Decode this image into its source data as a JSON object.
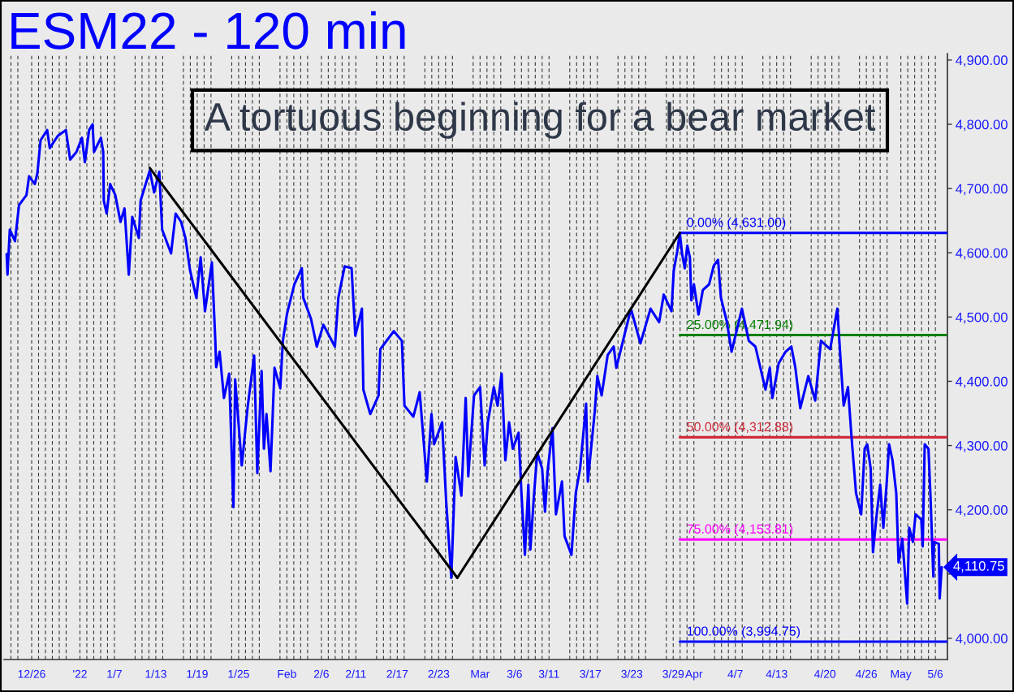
{
  "chart_data": {
    "type": "line",
    "title": "ESM22 - 120 min",
    "annotations": [
      "A tortuous beginning for a bear market",
      "4,110.75"
    ],
    "xlim": [
      "2021-12-22T00:00",
      "2022-05-07T18:00"
    ],
    "xticks": [
      {
        "value": "2021-12-23",
        "label": null
      },
      {
        "value": "2021-12-24",
        "label": null
      },
      {
        "value": "2021-12-26",
        "label": "12/26"
      },
      {
        "value": "2021-12-27",
        "label": null
      },
      {
        "value": "2021-12-28",
        "label": null
      },
      {
        "value": "2021-12-29",
        "label": null
      },
      {
        "value": "2021-12-30",
        "label": null
      },
      {
        "value": "2021-12-31",
        "label": null
      },
      {
        "value": "2022-01-02",
        "label": "'22"
      },
      {
        "value": "2022-01-03",
        "label": null
      },
      {
        "value": "2022-01-04",
        "label": null
      },
      {
        "value": "2022-01-05",
        "label": null
      },
      {
        "value": "2022-01-06",
        "label": null
      },
      {
        "value": "2022-01-07",
        "label": "1/7"
      },
      {
        "value": "2022-01-10",
        "label": null
      },
      {
        "value": "2022-01-11",
        "label": null
      },
      {
        "value": "2022-01-12",
        "label": null
      },
      {
        "value": "2022-01-13",
        "label": "1/13"
      },
      {
        "value": "2022-01-14",
        "label": null
      },
      {
        "value": "2022-01-17",
        "label": null
      },
      {
        "value": "2022-01-18",
        "label": null
      },
      {
        "value": "2022-01-19",
        "label": "1/19"
      },
      {
        "value": "2022-01-20",
        "label": null
      },
      {
        "value": "2022-01-21",
        "label": null
      },
      {
        "value": "2022-01-24",
        "label": null
      },
      {
        "value": "2022-01-25",
        "label": "1/25"
      },
      {
        "value": "2022-01-26",
        "label": null
      },
      {
        "value": "2022-01-27",
        "label": null
      },
      {
        "value": "2022-01-28",
        "label": null
      },
      {
        "value": "2022-01-31",
        "label": null
      },
      {
        "value": "2022-02-01",
        "label": "Feb"
      },
      {
        "value": "2022-02-02",
        "label": null
      },
      {
        "value": "2022-02-03",
        "label": null
      },
      {
        "value": "2022-02-04",
        "label": null
      },
      {
        "value": "2022-02-06",
        "label": "2/6"
      },
      {
        "value": "2022-02-07",
        "label": null
      },
      {
        "value": "2022-02-08",
        "label": null
      },
      {
        "value": "2022-02-09",
        "label": null
      },
      {
        "value": "2022-02-10",
        "label": null
      },
      {
        "value": "2022-02-11",
        "label": "2/11"
      },
      {
        "value": "2022-02-14",
        "label": null
      },
      {
        "value": "2022-02-15",
        "label": null
      },
      {
        "value": "2022-02-16",
        "label": null
      },
      {
        "value": "2022-02-17",
        "label": "2/17"
      },
      {
        "value": "2022-02-18",
        "label": null
      },
      {
        "value": "2022-02-21",
        "label": null
      },
      {
        "value": "2022-02-22",
        "label": null
      },
      {
        "value": "2022-02-23",
        "label": "2/23"
      },
      {
        "value": "2022-02-24",
        "label": null
      },
      {
        "value": "2022-02-25",
        "label": null
      },
      {
        "value": "2022-02-28",
        "label": null
      },
      {
        "value": "2022-03-01",
        "label": "Mar"
      },
      {
        "value": "2022-03-02",
        "label": null
      },
      {
        "value": "2022-03-03",
        "label": null
      },
      {
        "value": "2022-03-04",
        "label": null
      },
      {
        "value": "2022-03-06",
        "label": "3/6"
      },
      {
        "value": "2022-03-07",
        "label": null
      },
      {
        "value": "2022-03-08",
        "label": null
      },
      {
        "value": "2022-03-09",
        "label": null
      },
      {
        "value": "2022-03-10",
        "label": null
      },
      {
        "value": "2022-03-11",
        "label": "3/11"
      },
      {
        "value": "2022-03-14",
        "label": null
      },
      {
        "value": "2022-03-15",
        "label": null
      },
      {
        "value": "2022-03-16",
        "label": null
      },
      {
        "value": "2022-03-17",
        "label": "3/17"
      },
      {
        "value": "2022-03-18",
        "label": null
      },
      {
        "value": "2022-03-21",
        "label": null
      },
      {
        "value": "2022-03-22",
        "label": null
      },
      {
        "value": "2022-03-23",
        "label": "3/23"
      },
      {
        "value": "2022-03-24",
        "label": null
      },
      {
        "value": "2022-03-25",
        "label": null
      },
      {
        "value": "2022-03-28",
        "label": null
      },
      {
        "value": "2022-03-29",
        "label": "3/29"
      },
      {
        "value": "2022-03-30",
        "label": null
      },
      {
        "value": "2022-03-31",
        "label": null
      },
      {
        "value": "2022-04-01",
        "label": "Apr"
      },
      {
        "value": "2022-04-04",
        "label": null
      },
      {
        "value": "2022-04-05",
        "label": null
      },
      {
        "value": "2022-04-06",
        "label": null
      },
      {
        "value": "2022-04-07",
        "label": "4/7"
      },
      {
        "value": "2022-04-08",
        "label": null
      },
      {
        "value": "2022-04-11",
        "label": null
      },
      {
        "value": "2022-04-12",
        "label": null
      },
      {
        "value": "2022-04-13",
        "label": "4/13"
      },
      {
        "value": "2022-04-14",
        "label": null
      },
      {
        "value": "2022-04-15",
        "label": null
      },
      {
        "value": "2022-04-18",
        "label": null
      },
      {
        "value": "2022-04-19",
        "label": null
      },
      {
        "value": "2022-04-20",
        "label": "4/20"
      },
      {
        "value": "2022-04-21",
        "label": null
      },
      {
        "value": "2022-04-22",
        "label": null
      },
      {
        "value": "2022-04-25",
        "label": null
      },
      {
        "value": "2022-04-26",
        "label": "4/26"
      },
      {
        "value": "2022-04-27",
        "label": null
      },
      {
        "value": "2022-04-28",
        "label": null
      },
      {
        "value": "2022-04-29",
        "label": null
      },
      {
        "value": "2022-05-01",
        "label": "May"
      },
      {
        "value": "2022-05-02",
        "label": null
      },
      {
        "value": "2022-05-03",
        "label": null
      },
      {
        "value": "2022-05-04",
        "label": null
      },
      {
        "value": "2022-05-05",
        "label": null
      },
      {
        "value": "2022-05-06",
        "label": "5/6"
      }
    ],
    "ylim": [
      3967,
      4910
    ],
    "yticks": [
      {
        "value": 4000,
        "label": "4,000.00"
      },
      {
        "value": 4100,
        "label": null
      },
      {
        "value": 4200,
        "label": "4,200.00"
      },
      {
        "value": 4300,
        "label": "4,300.00"
      },
      {
        "value": 4400,
        "label": "4,400.00"
      },
      {
        "value": 4500,
        "label": "4,500.00"
      },
      {
        "value": 4600,
        "label": "4,600.00"
      },
      {
        "value": 4700,
        "label": "4,700.00"
      },
      {
        "value": 4800,
        "label": "4,800.00"
      },
      {
        "value": 4900,
        "label": "4,900.00"
      }
    ],
    "grid": "x",
    "series": [
      {
        "name": "0.00% (4,631.00)",
        "color": "#0000ff",
        "x": [
          "2022-03-29T23:00",
          "2022-05-07T18:00"
        ],
        "values": [
          4631.0,
          4631.0
        ]
      },
      {
        "name": "25.00% (4,471.94)",
        "color": "#008000",
        "x": [
          "2022-03-29T23:00",
          "2022-05-07T18:00"
        ],
        "values": [
          4471.94,
          4471.94
        ]
      },
      {
        "name": "50.00% (4,312.88)",
        "color": "#d02a3c",
        "x": [
          "2022-03-29T23:00",
          "2022-05-07T18:00"
        ],
        "values": [
          4312.88,
          4312.88
        ]
      },
      {
        "name": "75.00% (4,153.81)",
        "color": "#ff00ff",
        "x": [
          "2022-03-29T23:00",
          "2022-05-07T18:00"
        ],
        "values": [
          4153.81,
          4153.81
        ]
      },
      {
        "name": "100.00% (3,994.75)",
        "color": "#0000ff",
        "x": [
          "2022-03-29T23:00",
          "2022-05-07T18:00"
        ],
        "values": [
          3994.75,
          3994.75
        ]
      },
      {
        "color": "#0000ff",
        "x": [
          "2021-12-22T09:00",
          "2021-12-22T12:00",
          "2021-12-22T20:00",
          "2021-12-23T14:00",
          "2021-12-24T04:00",
          "2021-12-25T06:00",
          "2021-12-25T15:00",
          "2021-12-26T11:00",
          "2021-12-26T20:00",
          "2021-12-27T07:00",
          "2021-12-28T06:00",
          "2021-12-28T15:00",
          "2021-12-29T19:00",
          "2021-12-30T23:00",
          "2021-12-31T14:00",
          "2022-01-01T12:00",
          "2022-01-02T07:00",
          "2022-01-02T17:00",
          "2022-01-03T08:00",
          "2022-01-03T20:00",
          "2022-01-04T01:00",
          "2022-01-05T01:00",
          "2022-01-05T09:00",
          "2022-01-05T11:00",
          "2022-01-05T21:00",
          "2022-01-06T09:00",
          "2022-01-07T03:00",
          "2022-01-07T21:00",
          "2022-01-08T11:00",
          "2022-01-09T02:00",
          "2022-01-09T14:00",
          "2022-01-10T13:00",
          "2022-01-10T19:00",
          "2022-01-11T10:00",
          "2022-01-12T03:00",
          "2022-01-12T18:00",
          "2022-01-13T12:00",
          "2022-01-13T22:00",
          "2022-01-15T05:00",
          "2022-01-15T21:00",
          "2022-01-16T16:00",
          "2022-01-17T07:00",
          "2022-01-17T23:00",
          "2022-01-18T21:00",
          "2022-01-19T12:00",
          "2022-01-20T03:00",
          "2022-01-21T03:00",
          "2022-01-21T15:00",
          "2022-01-21T18:00",
          "2022-01-22T06:00",
          "2022-01-22T21:00",
          "2022-01-23T15:00",
          "2022-01-24T06:00",
          "2022-01-24T12:00",
          "2022-01-25T11:00",
          "2022-01-26T07:00",
          "2022-01-27T06:00",
          "2022-01-27T17:00",
          "2022-01-28T08:00",
          "2022-01-28T16:00",
          "2022-01-29T01:00",
          "2022-01-29T15:00",
          "2022-01-30T05:00",
          "2022-01-31T01:00",
          "2022-01-31T10:00",
          "2022-02-01T00:00",
          "2022-02-02T02:00",
          "2022-02-03T04:00",
          "2022-02-03T09:00",
          "2022-02-04T12:00",
          "2022-02-05T08:00",
          "2022-02-06T07:00",
          "2022-02-07T03:00",
          "2022-02-07T23:00",
          "2022-02-08T11:00",
          "2022-02-09T09:00",
          "2022-02-10T09:00",
          "2022-02-10T22:00",
          "2022-02-11T21:00",
          "2022-02-12T02:00",
          "2022-02-13T02:00",
          "2022-02-14T07:00",
          "2022-02-14T13:00",
          "2022-02-16T12:00",
          "2022-02-17T16:00",
          "2022-02-18T01:00",
          "2022-02-19T08:00",
          "2022-02-20T06:00",
          "2022-02-21T07:00",
          "2022-02-21T23:00",
          "2022-02-22T08:00",
          "2022-02-23T12:00",
          "2022-02-24T02:00",
          "2022-02-24T20:00",
          "2022-02-25T11:00",
          "2022-02-26T07:00",
          "2022-02-26T22:00",
          "2022-02-27T07:00",
          "2022-02-28T03:00",
          "2022-03-01T00:00",
          "2022-03-01T16:00",
          "2022-03-02T03:00",
          "2022-03-03T00:00",
          "2022-03-03T13:00",
          "2022-03-04T03:00",
          "2022-03-04T16:00",
          "2022-03-05T05:00",
          "2022-03-05T18:00",
          "2022-03-06T14:00",
          "2022-03-07T00:00",
          "2022-03-07T12:00",
          "2022-03-08T00:00",
          "2022-03-08T07:00",
          "2022-03-08T19:00",
          "2022-03-09T07:00",
          "2022-03-10T00:00",
          "2022-03-10T10:00",
          "2022-03-10T19:00",
          "2022-03-11T12:00",
          "2022-03-12T00:00",
          "2022-03-12T21:00",
          "2022-03-13T06:00",
          "2022-03-14T06:00",
          "2022-03-14T21:00",
          "2022-03-15T12:00",
          "2022-03-16T09:00",
          "2022-03-16T15:00",
          "2022-03-17T15:00",
          "2022-03-18T00:00",
          "2022-03-18T15:00",
          "2022-03-19T12:00",
          "2022-03-20T09:00",
          "2022-03-20T18:00",
          "2022-03-22T21:00",
          "2022-03-24T06:00",
          "2022-03-25T17:00",
          "2022-03-26T23:00",
          "2022-03-27T15:00",
          "2022-03-28T18:00",
          "2022-03-29T02:00",
          "2022-03-29T14:00",
          "2022-03-29T23:00",
          "2022-03-30T07:00",
          "2022-03-30T16:00",
          "2022-03-31T01:00",
          "2022-03-31T10:00",
          "2022-03-31T15:00",
          "2022-04-01T00:00",
          "2022-04-01T16:00",
          "2022-04-02T07:00",
          "2022-04-03T05:00",
          "2022-04-03T21:00",
          "2022-04-04T12:00",
          "2022-04-04T22:00",
          "2022-04-05T19:00",
          "2022-04-06T11:00",
          "2022-04-07T23:00",
          "2022-04-08T23:00",
          "2022-04-09T22:00",
          "2022-04-11T09:00",
          "2022-04-12T00:00",
          "2022-04-12T09:00",
          "2022-04-13T07:00",
          "2022-04-14T07:00",
          "2022-04-15T03:00",
          "2022-04-15T17:00",
          "2022-04-16T10:00",
          "2022-04-17T14:00",
          "2022-04-18T14:00",
          "2022-04-19T10:00",
          "2022-04-20T18:00",
          "2022-04-21T19:00",
          "2022-04-22T07:00",
          "2022-04-22T17:00",
          "2022-04-23T08:00",
          "2022-04-23T20:00",
          "2022-04-24T12:00",
          "2022-04-25T06:00",
          "2022-04-25T18:00",
          "2022-04-26T03:00",
          "2022-04-26T15:00",
          "2022-04-26T23:00",
          "2022-04-27T12:00",
          "2022-04-28T00:00",
          "2022-04-28T11:00",
          "2022-04-28T23:00",
          "2022-04-29T07:00",
          "2022-04-29T19:00",
          "2022-04-30T08:00",
          "2022-04-30T16:00",
          "2022-05-01T05:00",
          "2022-05-01T22:00",
          "2022-05-02T05:00",
          "2022-05-02T18:00",
          "2022-05-03T03:00",
          "2022-05-03T23:00",
          "2022-05-04T04:00",
          "2022-05-04T11:00",
          "2022-05-05T00:00",
          "2022-05-05T07:00",
          "2022-05-05T17:00",
          "2022-05-05T19:00",
          "2022-05-06T12:00",
          "2022-05-06T15:00",
          "2022-05-06T22:00"
        ],
        "values": [
          4598,
          4566,
          4636,
          4618,
          4674,
          4690,
          4719,
          4707,
          4724,
          4775,
          4791,
          4763,
          4782,
          4791,
          4745,
          4757,
          4779,
          4741,
          4791,
          4800,
          4757,
          4779,
          4757,
          4681,
          4661,
          4707,
          4690,
          4648,
          4669,
          4566,
          4656,
          4623,
          4681,
          4703,
          4728,
          4694,
          4726,
          4636,
          4599,
          4661,
          4648,
          4623,
          4573,
          4530,
          4593,
          4509,
          4585,
          4463,
          4422,
          4446,
          4374,
          4412,
          4204,
          4403,
          4269,
          4358,
          4440,
          4257,
          4416,
          4295,
          4349,
          4260,
          4421,
          4389,
          4463,
          4504,
          4551,
          4576,
          4530,
          4497,
          4454,
          4488,
          4471,
          4454,
          4530,
          4579,
          4576,
          4471,
          4513,
          4387,
          4349,
          4378,
          4450,
          4478,
          4463,
          4362,
          4345,
          4383,
          4244,
          4349,
          4302,
          4336,
          4214,
          4094,
          4282,
          4222,
          4374,
          4252,
          4378,
          4391,
          4269,
          4336,
          4391,
          4362,
          4412,
          4277,
          4336,
          4295,
          4320,
          4226,
          4130,
          4239,
          4138,
          4219,
          4289,
          4264,
          4197,
          4260,
          4327,
          4193,
          4244,
          4159,
          4130,
          4226,
          4264,
          4365,
          4244,
          4353,
          4408,
          4378,
          4441,
          4454,
          4421,
          4513,
          4459,
          4513,
          4492,
          4535,
          4509,
          4573,
          4602,
          4631,
          4598,
          4576,
          4611,
          4593,
          4526,
          4551,
          4504,
          4542,
          4551,
          4580,
          4589,
          4530,
          4492,
          4446,
          4513,
          4463,
          4454,
          4387,
          4421,
          4374,
          4428,
          4446,
          4454,
          4421,
          4358,
          4408,
          4370,
          4463,
          4450,
          4513,
          4428,
          4362,
          4391,
          4315,
          4226,
          4193,
          4295,
          4302,
          4264,
          4134,
          4193,
          4239,
          4172,
          4244,
          4302,
          4277,
          4226,
          4118,
          4155,
          4054,
          4172,
          4150,
          4193,
          4185,
          4143,
          4302,
          4295,
          4222,
          4096,
          4150,
          4147,
          4062,
          4110.75
        ]
      },
      {
        "color": "#000000",
        "x": [
          "2022-01-12T03:00",
          "2022-02-25T17:00",
          "2022-03-29T23:00"
        ],
        "values": [
          4732,
          4094,
          4631
        ]
      }
    ]
  }
}
